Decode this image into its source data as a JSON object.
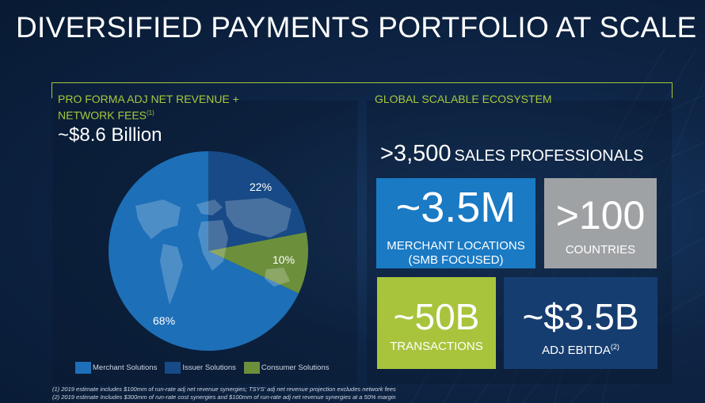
{
  "title": "DIVERSIFIED PAYMENTS PORTFOLIO AT SCALE",
  "left": {
    "heading_line1": "PRO FORMA ADJ NET REVENUE +",
    "heading_line2": "NETWORK FEES",
    "heading_sup": "(1)",
    "total": "~$8.6 Billion"
  },
  "chart_data": {
    "type": "pie",
    "categories": [
      "Merchant Solutions",
      "Issuer Solutions",
      "Consumer Solutions"
    ],
    "values": [
      68,
      22,
      10
    ],
    "labels": [
      "68%",
      "22%",
      "10%"
    ],
    "colors": [
      "#1d6fb8",
      "#174a86",
      "#6c8f3c"
    ],
    "legend_position": "bottom"
  },
  "right": {
    "heading": "GLOBAL SCALABLE ECOSYSTEM",
    "sales_number": ">3,500",
    "sales_text": "SALES PROFESSIONALS",
    "tiles": {
      "merchant": {
        "big": "~3.5M",
        "line1": "MERCHANT LOCATIONS",
        "line2": "(SMB FOCUSED)",
        "color": "#1a7ac4"
      },
      "countries": {
        "big": ">100",
        "line1": "COUNTRIES",
        "color": "#9fa2a5"
      },
      "transactions": {
        "big": "~50B",
        "line1": "TRANSACTIONS",
        "color": "#a8c43c"
      },
      "ebitda": {
        "big": "~$3.5B",
        "line1": "ADJ EBITDA",
        "sup": "(2)",
        "color": "#163d70"
      }
    }
  },
  "footnotes": {
    "f1": "(1) 2019 estimate includes $100mm of  run-rate adj net revenue synergies; TSYS' adj net revenue projection excludes network fees",
    "f2": "(2) 2019 estimate Includes $300mm of run-rate cost synergies and $100mm of run-rate adj net revenue synergies at a 50% margin"
  },
  "accent": "#a7c83c"
}
